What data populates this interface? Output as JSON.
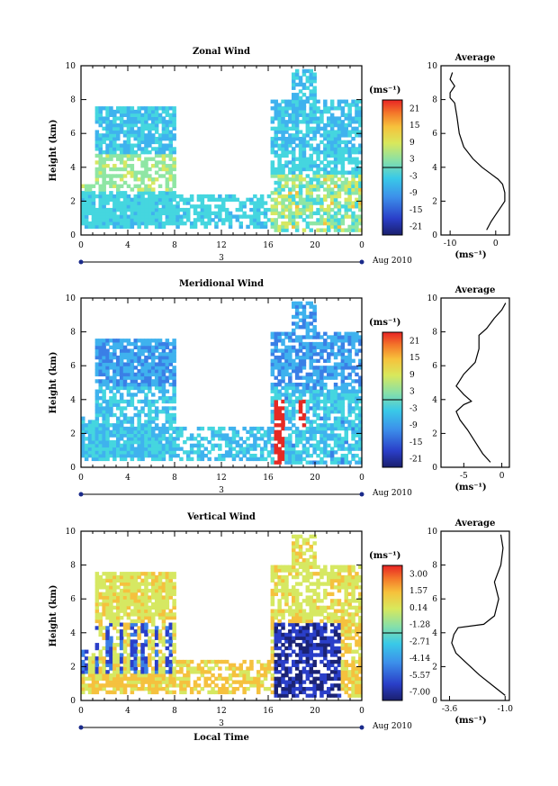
{
  "chart_data": [
    {
      "type": "heatmap",
      "title": "Zonal Wind",
      "ylabel": "Height (km)",
      "ylim": [
        0,
        10
      ],
      "xlim": [
        0,
        24
      ],
      "x_ticks": [
        "0",
        "4",
        "8",
        "12",
        "16",
        "20",
        "0"
      ],
      "y_ticks": [
        "0",
        "2",
        "4",
        "6",
        "8",
        "10"
      ],
      "day_label": "3",
      "date_label": "Aug 2010",
      "colorbar_unit": "(ms⁻¹)",
      "colorbar_ticks": [
        "21",
        "15",
        "9",
        "3",
        "-3",
        "-9",
        "-15",
        "-21"
      ],
      "colorbar_range": [
        -24,
        24
      ],
      "profile": {
        "title": "Average",
        "xlabel": "(ms⁻¹)",
        "x_ticks": [
          "-10",
          "0"
        ],
        "xlim": [
          -12,
          3
        ],
        "y_ticks": [
          "0",
          "2",
          "4",
          "6",
          "8",
          "10"
        ],
        "points": [
          [
            -2,
            0.3
          ],
          [
            -1,
            0.8
          ],
          [
            0,
            1.2
          ],
          [
            1,
            1.6
          ],
          [
            2,
            2.0
          ],
          [
            2,
            2.5
          ],
          [
            1.5,
            3.0
          ],
          [
            0.5,
            3.3
          ],
          [
            -1,
            3.6
          ],
          [
            -3,
            4.0
          ],
          [
            -5,
            4.5
          ],
          [
            -7,
            5.2
          ],
          [
            -8,
            6.0
          ],
          [
            -8.5,
            7.0
          ],
          [
            -9,
            7.8
          ],
          [
            -10,
            8.1
          ],
          [
            -10,
            8.4
          ],
          [
            -9,
            8.8
          ],
          [
            -10,
            9.2
          ],
          [
            -9.5,
            9.6
          ]
        ]
      }
    },
    {
      "type": "heatmap",
      "title": "Meridional Wind",
      "ylabel": "Height (km)",
      "ylim": [
        0,
        10
      ],
      "xlim": [
        0,
        24
      ],
      "x_ticks": [
        "0",
        "4",
        "8",
        "12",
        "16",
        "20",
        "0"
      ],
      "y_ticks": [
        "0",
        "2",
        "4",
        "6",
        "8",
        "10"
      ],
      "day_label": "3",
      "date_label": "Aug 2010",
      "colorbar_unit": "(ms⁻¹)",
      "colorbar_ticks": [
        "21",
        "15",
        "9",
        "3",
        "-3",
        "-9",
        "-15",
        "-21"
      ],
      "colorbar_range": [
        -24,
        24
      ],
      "profile": {
        "title": "Average",
        "xlabel": "(ms⁻¹)",
        "x_ticks": [
          "-5",
          "0"
        ],
        "xlim": [
          -8,
          1
        ],
        "y_ticks": [
          "0",
          "2",
          "4",
          "6",
          "8",
          "10"
        ],
        "points": [
          [
            -1.5,
            0.3
          ],
          [
            -2.5,
            0.8
          ],
          [
            -3.5,
            1.5
          ],
          [
            -4.5,
            2.2
          ],
          [
            -5.5,
            2.8
          ],
          [
            -6,
            3.3
          ],
          [
            -5,
            3.7
          ],
          [
            -4,
            3.9
          ],
          [
            -5,
            4.3
          ],
          [
            -6,
            4.8
          ],
          [
            -5,
            5.5
          ],
          [
            -3.5,
            6.2
          ],
          [
            -3,
            7.0
          ],
          [
            -3,
            7.8
          ],
          [
            -2,
            8.2
          ],
          [
            -1,
            8.8
          ],
          [
            0,
            9.3
          ],
          [
            0.5,
            9.7
          ]
        ]
      }
    },
    {
      "type": "heatmap",
      "title": "Vertical Wind",
      "ylabel": "Height (km)",
      "xlabel": "Local Time",
      "ylim": [
        0,
        10
      ],
      "xlim": [
        0,
        24
      ],
      "x_ticks": [
        "0",
        "4",
        "8",
        "12",
        "16",
        "20",
        "0"
      ],
      "y_ticks": [
        "0",
        "2",
        "4",
        "6",
        "8",
        "10"
      ],
      "day_label": "3",
      "date_label": "Aug 2010",
      "colorbar_unit": "(ms⁻¹)",
      "colorbar_ticks": [
        "3.00",
        "1.57",
        "0.14",
        "-1.28",
        "-2.71",
        "-4.14",
        "-5.57",
        "-7.00"
      ],
      "colorbar_range": [
        -8,
        4
      ],
      "profile": {
        "title": "Average",
        "xlabel": "(ms⁻¹)",
        "x_ticks": [
          "-3.6",
          "-1.0"
        ],
        "xlim": [
          -4,
          -0.8
        ],
        "y_ticks": [
          "0",
          "2",
          "4",
          "6",
          "8",
          "10"
        ],
        "points": [
          [
            -1.0,
            0.3
          ],
          [
            -1.5,
            0.8
          ],
          [
            -2.2,
            1.5
          ],
          [
            -2.8,
            2.2
          ],
          [
            -3.3,
            2.8
          ],
          [
            -3.5,
            3.4
          ],
          [
            -3.4,
            3.9
          ],
          [
            -3.2,
            4.3
          ],
          [
            -2.0,
            4.5
          ],
          [
            -1.5,
            5.0
          ],
          [
            -1.3,
            6.0
          ],
          [
            -1.5,
            7.0
          ],
          [
            -1.2,
            8.0
          ],
          [
            -1.1,
            9.0
          ],
          [
            -1.2,
            9.8
          ]
        ]
      }
    }
  ]
}
